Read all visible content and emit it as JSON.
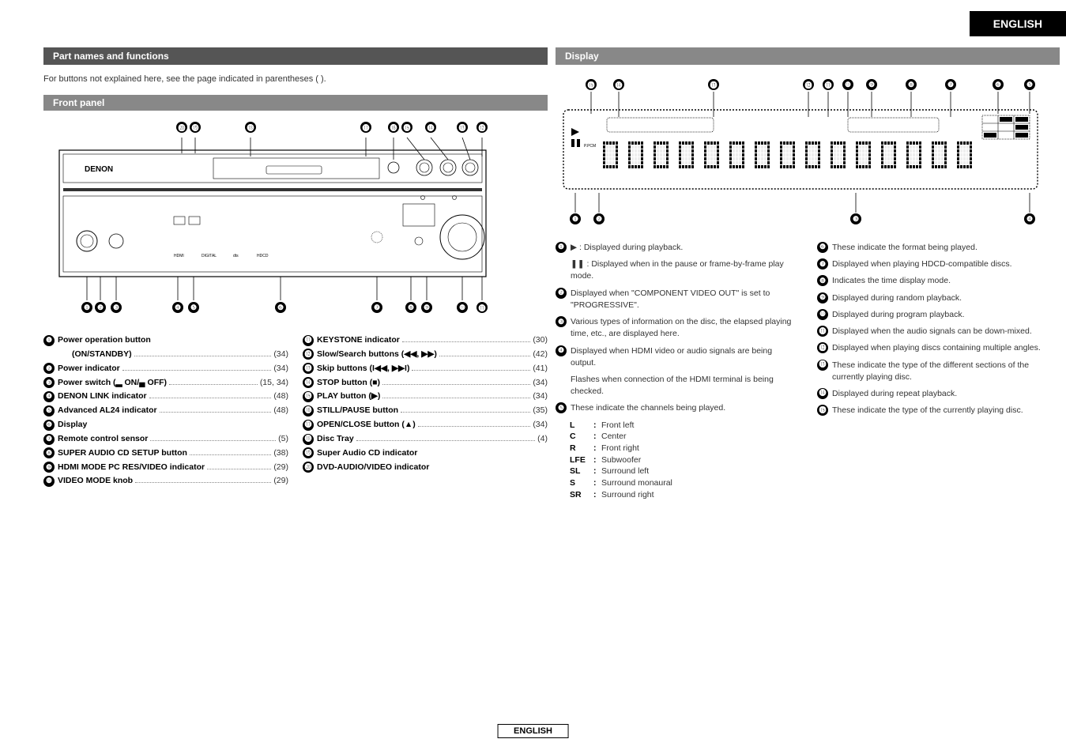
{
  "lang_tab": "ENGLISH",
  "footer_lang": "ENGLISH",
  "left": {
    "section_title": "Part names and functions",
    "intro": "For buttons not explained here, see the page indicated in parentheses (  ).",
    "panel_title": "Front panel",
    "legend_left": [
      {
        "n": "❶",
        "label": "Power operation button",
        "page": ""
      },
      {
        "n": "",
        "label": "(ON/STANDBY)",
        "page": "(34)",
        "sub": true,
        "dots": true
      },
      {
        "n": "❷",
        "label": "Power indicator",
        "page": "(34)",
        "dots": true
      },
      {
        "n": "❸",
        "label": "Power switch (▂ ON/▄ OFF)",
        "page": "(15, 34)",
        "dots": true
      },
      {
        "n": "❹",
        "label": "DENON LINK indicator",
        "page": "(48)",
        "dots": true
      },
      {
        "n": "❺",
        "label": "Advanced AL24 indicator",
        "page": "(48)",
        "dots": true
      },
      {
        "n": "❻",
        "label": "Display",
        "page": ""
      },
      {
        "n": "❼",
        "label": "Remote control sensor",
        "page": "(5)",
        "dots": true
      },
      {
        "n": "❽",
        "label": "SUPER AUDIO CD SETUP button",
        "page": "(38)",
        "dots": true
      },
      {
        "n": "❾",
        "label": "HDMI MODE PC RES/VIDEO indicator",
        "page": "(29)",
        "dots": true
      },
      {
        "n": "❿",
        "label": "VIDEO MODE knob",
        "page": "(29)",
        "dots": true
      }
    ],
    "legend_right": [
      {
        "n": "⓫",
        "label": "KEYSTONE indicator",
        "page": "(30)",
        "dots": true
      },
      {
        "n": "⓬",
        "label": "Slow/Search buttons (◀◀, ▶▶)",
        "page": "(42)",
        "dots": true
      },
      {
        "n": "⓭",
        "label": "Skip buttons (I◀◀, ▶▶I)",
        "page": "(41)",
        "dots": true
      },
      {
        "n": "⓮",
        "label": "STOP button (■)",
        "page": "(34)",
        "dots": true
      },
      {
        "n": "⓯",
        "label": "PLAY button (▶)",
        "page": "(34)",
        "dots": true
      },
      {
        "n": "⓰",
        "label": "STILL/PAUSE button",
        "page": "(35)",
        "dots": true
      },
      {
        "n": "⓱",
        "label": "OPEN/CLOSE button (▲)",
        "page": "(34)",
        "dots": true
      },
      {
        "n": "⓲",
        "label": "Disc Tray",
        "page": "(4)",
        "dots": true
      },
      {
        "n": "⓳",
        "label": "Super Audio CD indicator",
        "page": ""
      },
      {
        "n": "⓴",
        "label": "DVD-AUDIO/VIDEO indicator",
        "page": ""
      }
    ],
    "callouts_top": [
      "⓴",
      "⓳",
      "⓲",
      "⓱",
      "⓰",
      "⓯",
      "⓮",
      "⓭",
      "⓬"
    ],
    "callouts_bottom": [
      "❶",
      "❷",
      "❸",
      "❹",
      "❺",
      "❻",
      "❼",
      "❽",
      "❾",
      "❿",
      "⓫"
    ]
  },
  "right": {
    "section_title": "Display",
    "callouts_top": [
      "⓯",
      "⓮",
      "⓭",
      "⓬",
      "⓫",
      "❿",
      "❾",
      "❽",
      "❼",
      "❻",
      "❺"
    ],
    "callouts_bottom": [
      "❶",
      "❷",
      "❸",
      "❹"
    ],
    "desc_left": [
      {
        "n": "❶",
        "txt": "▶ : Displayed during playback."
      },
      {
        "sub": true,
        "txt": "❚❚ : Displayed when in the pause or frame-by-frame play mode."
      },
      {
        "n": "❷",
        "txt": "Displayed when \"COMPONENT VIDEO OUT\" is set to \"PROGRESSIVE\"."
      },
      {
        "n": "❸",
        "txt": "Various types of information on the disc, the elapsed playing time, etc., are displayed here."
      },
      {
        "n": "❹",
        "txt": "Displayed when HDMI video or audio signals are being output."
      },
      {
        "sub": true,
        "txt": "Flashes when connection of the HDMI terminal is being checked."
      },
      {
        "n": "❺",
        "txt": "These indicate the channels being played."
      }
    ],
    "channels": [
      {
        "k": "L",
        "v": "Front left"
      },
      {
        "k": "C",
        "v": "Center"
      },
      {
        "k": "R",
        "v": "Front right"
      },
      {
        "k": "LFE",
        "v": "Subwoofer"
      },
      {
        "k": "SL",
        "v": "Surround left"
      },
      {
        "k": "S",
        "v": "Surround monaural"
      },
      {
        "k": "SR",
        "v": "Surround right"
      }
    ],
    "desc_right": [
      {
        "n": "❻",
        "txt": "These indicate the format being played."
      },
      {
        "n": "❼",
        "txt": "Displayed when playing HDCD-compatible discs."
      },
      {
        "n": "❽",
        "txt": "Indicates the time display mode."
      },
      {
        "n": "❾",
        "txt": "Displayed during random playback."
      },
      {
        "n": "❿",
        "txt": "Displayed during program playback."
      },
      {
        "n": "⓫",
        "txt": "Displayed when the audio signals can be down-mixed."
      },
      {
        "n": "⓬",
        "txt": "Displayed when playing discs containing multiple angles."
      },
      {
        "n": "⓭",
        "txt": "These indicate the type of the different sections of the currently playing disc."
      },
      {
        "n": "⓮",
        "txt": "Displayed during repeat playback."
      },
      {
        "n": "⓯",
        "txt": "These indicate the type of the currently playing disc."
      }
    ]
  },
  "colors": {
    "tab_bg": "#000000",
    "tab_fg": "#ffffff",
    "sec_bg": "#555555",
    "sub_bg": "#8a8a8a",
    "line": "#000000"
  }
}
